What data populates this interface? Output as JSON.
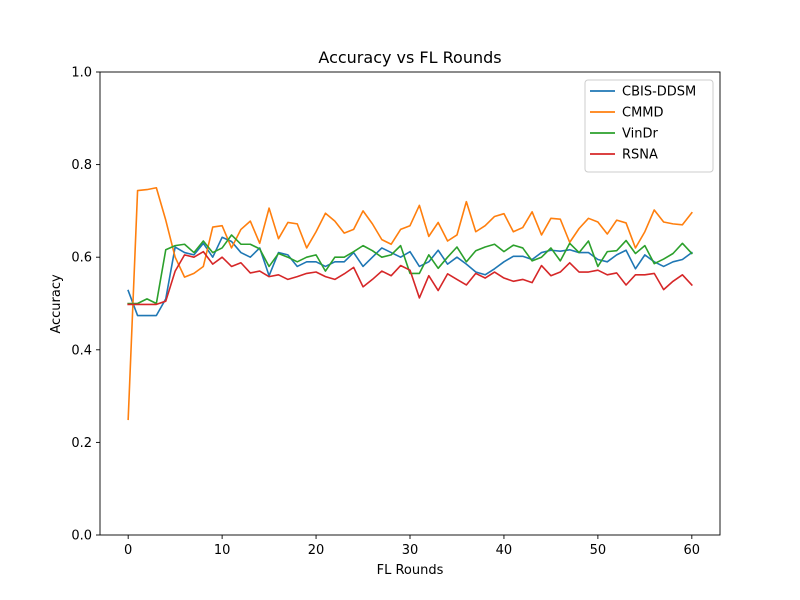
{
  "chart_data": {
    "type": "line",
    "title": "Accuracy vs FL Rounds",
    "xlabel": "FL Rounds",
    "ylabel": "Accuracy",
    "xlim": [
      -3,
      63
    ],
    "ylim": [
      0.0,
      1.0
    ],
    "xticks": [
      0,
      10,
      20,
      30,
      40,
      50,
      60
    ],
    "yticks": [
      0.0,
      0.2,
      0.4,
      0.6,
      0.8,
      1.0
    ],
    "xtick_labels": [
      "0",
      "10",
      "20",
      "30",
      "40",
      "50",
      "60"
    ],
    "ytick_labels": [
      "0.0",
      "0.2",
      "0.4",
      "0.6",
      "0.8",
      "1.0"
    ],
    "grid": false,
    "legend_position": "top-right",
    "x": [
      0,
      1,
      2,
      3,
      4,
      5,
      6,
      7,
      8,
      9,
      10,
      11,
      12,
      13,
      14,
      15,
      16,
      17,
      18,
      19,
      20,
      21,
      22,
      23,
      24,
      25,
      26,
      27,
      28,
      29,
      30,
      31,
      32,
      33,
      34,
      35,
      36,
      37,
      38,
      39,
      40,
      41,
      42,
      43,
      44,
      45,
      46,
      47,
      48,
      49,
      50,
      51,
      52,
      53,
      54,
      55,
      56,
      57,
      58,
      59,
      60
    ],
    "series": [
      {
        "name": "CBIS-DDSM",
        "color": "#1f77b4",
        "values": [
          0.528,
          0.474,
          0.474,
          0.474,
          0.51,
          0.622,
          0.61,
          0.605,
          0.63,
          0.6,
          0.643,
          0.634,
          0.61,
          0.6,
          0.62,
          0.56,
          0.61,
          0.605,
          0.58,
          0.59,
          0.59,
          0.58,
          0.59,
          0.59,
          0.61,
          0.58,
          0.6,
          0.62,
          0.61,
          0.6,
          0.612,
          0.58,
          0.59,
          0.615,
          0.585,
          0.6,
          0.585,
          0.568,
          0.562,
          0.575,
          0.59,
          0.602,
          0.602,
          0.595,
          0.61,
          0.615,
          0.613,
          0.616,
          0.61,
          0.61,
          0.595,
          0.59,
          0.605,
          0.615,
          0.575,
          0.605,
          0.59,
          0.58,
          0.59,
          0.595,
          0.61
        ]
      },
      {
        "name": "CMMD",
        "color": "#ff7f0e",
        "values": [
          0.25,
          0.744,
          0.746,
          0.75,
          0.68,
          0.6,
          0.557,
          0.565,
          0.58,
          0.665,
          0.668,
          0.62,
          0.66,
          0.678,
          0.63,
          0.706,
          0.64,
          0.675,
          0.672,
          0.62,
          0.655,
          0.695,
          0.678,
          0.652,
          0.66,
          0.7,
          0.672,
          0.638,
          0.628,
          0.66,
          0.668,
          0.712,
          0.645,
          0.675,
          0.635,
          0.648,
          0.72,
          0.655,
          0.668,
          0.688,
          0.694,
          0.655,
          0.664,
          0.698,
          0.648,
          0.684,
          0.682,
          0.632,
          0.662,
          0.684,
          0.676,
          0.65,
          0.68,
          0.674,
          0.62,
          0.655,
          0.702,
          0.676,
          0.672,
          0.67,
          0.696
        ]
      },
      {
        "name": "VinDr",
        "color": "#2ca02c",
        "values": [
          0.5,
          0.5,
          0.51,
          0.5,
          0.616,
          0.625,
          0.628,
          0.61,
          0.635,
          0.61,
          0.62,
          0.648,
          0.628,
          0.628,
          0.618,
          0.58,
          0.608,
          0.6,
          0.59,
          0.6,
          0.605,
          0.57,
          0.6,
          0.6,
          0.612,
          0.625,
          0.614,
          0.6,
          0.605,
          0.625,
          0.565,
          0.565,
          0.605,
          0.576,
          0.6,
          0.622,
          0.59,
          0.614,
          0.622,
          0.628,
          0.612,
          0.626,
          0.62,
          0.592,
          0.6,
          0.62,
          0.592,
          0.63,
          0.61,
          0.635,
          0.58,
          0.612,
          0.614,
          0.636,
          0.608,
          0.625,
          0.586,
          0.596,
          0.608,
          0.63,
          0.608
        ]
      },
      {
        "name": "RSNA",
        "color": "#d62728",
        "values": [
          0.498,
          0.498,
          0.498,
          0.498,
          0.505,
          0.57,
          0.605,
          0.6,
          0.612,
          0.585,
          0.6,
          0.58,
          0.588,
          0.566,
          0.57,
          0.558,
          0.562,
          0.552,
          0.558,
          0.565,
          0.568,
          0.558,
          0.552,
          0.564,
          0.578,
          0.536,
          0.552,
          0.57,
          0.56,
          0.582,
          0.572,
          0.512,
          0.56,
          0.528,
          0.564,
          0.552,
          0.54,
          0.565,
          0.555,
          0.568,
          0.555,
          0.548,
          0.552,
          0.545,
          0.582,
          0.56,
          0.568,
          0.588,
          0.568,
          0.568,
          0.572,
          0.562,
          0.566,
          0.54,
          0.562,
          0.562,
          0.565,
          0.53,
          0.548,
          0.562,
          0.54
        ]
      }
    ]
  }
}
